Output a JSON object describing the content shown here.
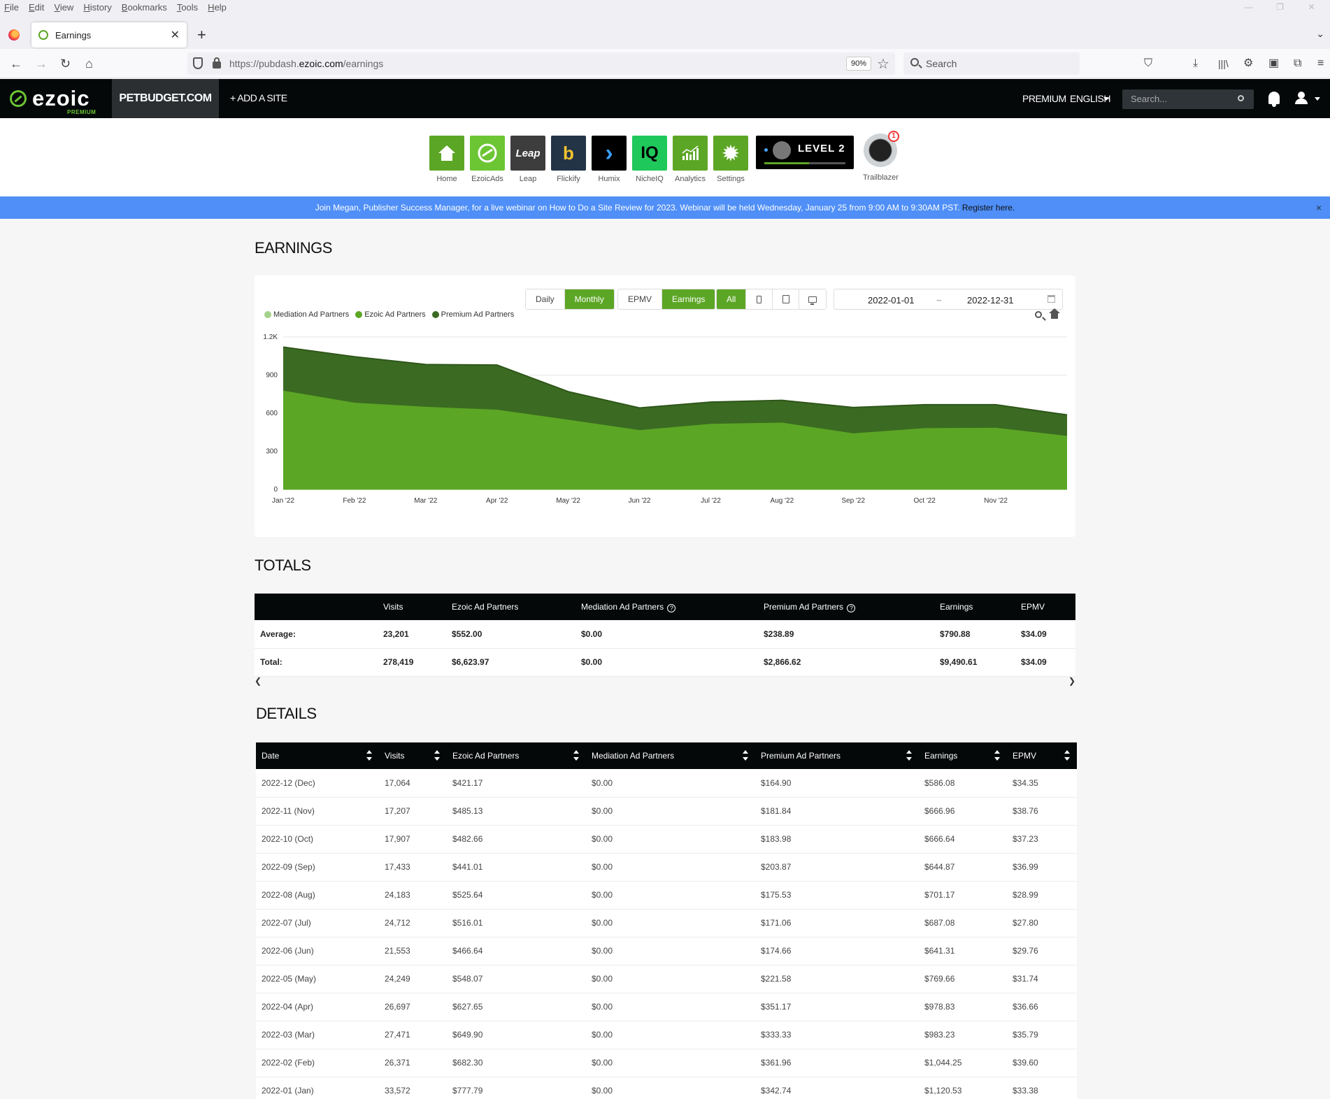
{
  "browser": {
    "menu": [
      "File",
      "Edit",
      "View",
      "History",
      "Bookmarks",
      "Tools",
      "Help"
    ],
    "tab_title": "Earnings",
    "url_prefix": "https://pubdash.",
    "url_domain": "ezoic.com",
    "url_path": "/earnings",
    "zoom": "90%",
    "search_placeholder": "Search"
  },
  "header": {
    "logo_text": "ezoic",
    "logo_sub": "PREMIUM",
    "site": "PETBUDGET.COM",
    "add_site": "+ ADD A SITE",
    "premium": "PREMIUM",
    "language": "ENGLISH",
    "search_placeholder": "Search..."
  },
  "apps": [
    {
      "label": "Home",
      "icon": "home-icon",
      "color": "#5ca625"
    },
    {
      "label": "EzoicAds",
      "icon": "ezoicads-icon",
      "color": "#6cc533"
    },
    {
      "label": "Leap",
      "icon": "leap-icon",
      "color": "#3d3d3d",
      "text": "Leap"
    },
    {
      "label": "Flickify",
      "icon": "flickify-icon",
      "color": "#243447",
      "text": "b"
    },
    {
      "label": "Humix",
      "icon": "humix-icon",
      "color": "#000000",
      "text": "›"
    },
    {
      "label": "NicheIQ",
      "icon": "nicheiq-icon",
      "color": "#1fc85b",
      "text": "IQ"
    },
    {
      "label": "Analytics",
      "icon": "analytics-icon",
      "color": "#5ca625"
    },
    {
      "label": "Settings",
      "icon": "gear-icon",
      "color": "#5ca625",
      "text": "✹"
    }
  ],
  "level": {
    "text": "LEVEL 2",
    "progress": 0.55
  },
  "trailblazer": {
    "label": "Trailblazer",
    "badge": "1"
  },
  "announcement": {
    "text": "Join Megan, Publisher Success Manager, for a live webinar on How to Do a Site Review for 2023. Webinar will be held Wednesday, January 25 from 9:00 AM to 9:30AM PST.",
    "link": "Register here.",
    "close": "×"
  },
  "earnings": {
    "title": "EARNINGS",
    "period_buttons": [
      "Daily",
      "Monthly"
    ],
    "period_active": "Monthly",
    "metric_buttons": [
      "EPMV",
      "Earnings"
    ],
    "metric_active": "Earnings",
    "device_all": "All",
    "date_start": "2022-01-01",
    "date_sep": "~",
    "date_end": "2022-12-31"
  },
  "chart_data": {
    "type": "area",
    "stacked": true,
    "categories": [
      "Jan '22",
      "Feb '22",
      "Mar '22",
      "Apr '22",
      "May '22",
      "Jun '22",
      "Jul '22",
      "Aug '22",
      "Sep '22",
      "Oct '22",
      "Nov '22",
      "Dec '22"
    ],
    "tick_labels": [
      "Jan '22",
      "Feb '22",
      "Mar '22",
      "Apr '22",
      "May '22",
      "Jun '22",
      "Jul '22",
      "Aug '22",
      "Sep '22",
      "Oct '22",
      "Nov '22"
    ],
    "series": [
      {
        "name": "Mediation Ad Partners",
        "color": "#a3d38a",
        "values": [
          0,
          0,
          0,
          0,
          0,
          0,
          0,
          0,
          0,
          0,
          0,
          0
        ]
      },
      {
        "name": "Ezoic Ad Partners",
        "color": "#5ca625",
        "values": [
          777.79,
          682.3,
          649.9,
          627.65,
          548.07,
          466.64,
          516.01,
          525.64,
          441.01,
          482.66,
          485.13,
          421.17
        ]
      },
      {
        "name": "Premium Ad Partners",
        "color": "#3b6b22",
        "values": [
          342.74,
          361.96,
          333.33,
          351.17,
          221.58,
          174.66,
          171.06,
          175.53,
          203.87,
          183.98,
          181.84,
          164.9
        ]
      }
    ],
    "yticks": [
      "0",
      "300",
      "600",
      "900",
      "1.2K"
    ],
    "ylim": [
      0,
      1200
    ],
    "grid": true,
    "legend": "top-left"
  },
  "totals": {
    "title": "TOTALS",
    "headers": [
      "",
      "Visits",
      "Ezoic Ad Partners",
      "Mediation Ad Partners",
      "Premium Ad Partners",
      "Earnings",
      "EPMV"
    ],
    "rows": [
      [
        "Average:",
        "23,201",
        "$552.00",
        "$0.00",
        "$238.89",
        "$790.88",
        "$34.09"
      ],
      [
        "Total:",
        "278,419",
        "$6,623.97",
        "$0.00",
        "$2,866.62",
        "$9,490.61",
        "$34.09"
      ]
    ]
  },
  "details": {
    "title": "DETAILS",
    "headers": [
      "Date",
      "Visits",
      "Ezoic Ad Partners",
      "Mediation Ad Partners",
      "Premium Ad Partners",
      "Earnings",
      "EPMV"
    ],
    "rows": [
      [
        "2022-12 (Dec)",
        "17,064",
        "$421.17",
        "$0.00",
        "$164.90",
        "$586.08",
        "$34.35"
      ],
      [
        "2022-11 (Nov)",
        "17,207",
        "$485.13",
        "$0.00",
        "$181.84",
        "$666.96",
        "$38.76"
      ],
      [
        "2022-10 (Oct)",
        "17,907",
        "$482.66",
        "$0.00",
        "$183.98",
        "$666.64",
        "$37.23"
      ],
      [
        "2022-09 (Sep)",
        "17,433",
        "$441.01",
        "$0.00",
        "$203.87",
        "$644.87",
        "$36.99"
      ],
      [
        "2022-08 (Aug)",
        "24,183",
        "$525.64",
        "$0.00",
        "$175.53",
        "$701.17",
        "$28.99"
      ],
      [
        "2022-07 (Jul)",
        "24,712",
        "$516.01",
        "$0.00",
        "$171.06",
        "$687.08",
        "$27.80"
      ],
      [
        "2022-06 (Jun)",
        "21,553",
        "$466.64",
        "$0.00",
        "$174.66",
        "$641.31",
        "$29.76"
      ],
      [
        "2022-05 (May)",
        "24,249",
        "$548.07",
        "$0.00",
        "$221.58",
        "$769.66",
        "$31.74"
      ],
      [
        "2022-04 (Apr)",
        "26,697",
        "$627.65",
        "$0.00",
        "$351.17",
        "$978.83",
        "$36.66"
      ],
      [
        "2022-03 (Mar)",
        "27,471",
        "$649.90",
        "$0.00",
        "$333.33",
        "$983.23",
        "$35.79"
      ],
      [
        "2022-02 (Feb)",
        "26,371",
        "$682.30",
        "$0.00",
        "$361.96",
        "$1,044.25",
        "$39.60"
      ],
      [
        "2022-01 (Jan)",
        "33,572",
        "$777.79",
        "$0.00",
        "$342.74",
        "$1,120.53",
        "$33.38"
      ]
    ]
  }
}
